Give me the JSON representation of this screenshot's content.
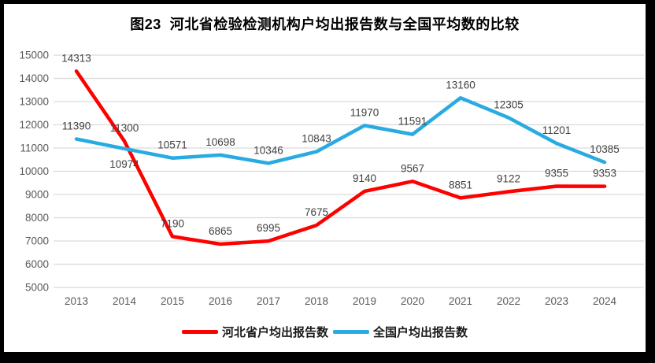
{
  "title": "图23  河北省检验检测机构户均出报告数与全国平均数的比较",
  "styles": {
    "frame_color": "#000000",
    "background": "#ffffff",
    "grid_color": "#d9d9d9",
    "tick_label_color": "#595959",
    "data_label_color": "#404040",
    "title_color": "#000000",
    "legend_text_color": "#1a1a1a"
  },
  "chart_data": {
    "type": "line",
    "title": "图23  河北省检验检测机构户均出报告数与全国平均数的比较",
    "categories": [
      "2013",
      "2014",
      "2015",
      "2016",
      "2017",
      "2018",
      "2019",
      "2020",
      "2021",
      "2022",
      "2023",
      "2024"
    ],
    "series": [
      {
        "name": "河北省户均出报告数",
        "color": "#ff0000",
        "values": [
          14313,
          11300,
          7190,
          6865,
          6995,
          7675,
          9140,
          9567,
          8851,
          9122,
          9355,
          9353
        ]
      },
      {
        "name": "全国户均出报告数",
        "color": "#29abe2",
        "values": [
          11390,
          10974,
          10571,
          10698,
          10346,
          10843,
          11970,
          11591,
          13160,
          12305,
          11201,
          10385
        ]
      }
    ],
    "xlabel": "",
    "ylabel": "",
    "ylim": [
      5000,
      15000
    ],
    "yticks": [
      5000,
      6000,
      7000,
      8000,
      9000,
      10000,
      11000,
      12000,
      13000,
      14000,
      15000
    ],
    "grid": true,
    "data_labels": true,
    "legend_position": "bottom"
  }
}
